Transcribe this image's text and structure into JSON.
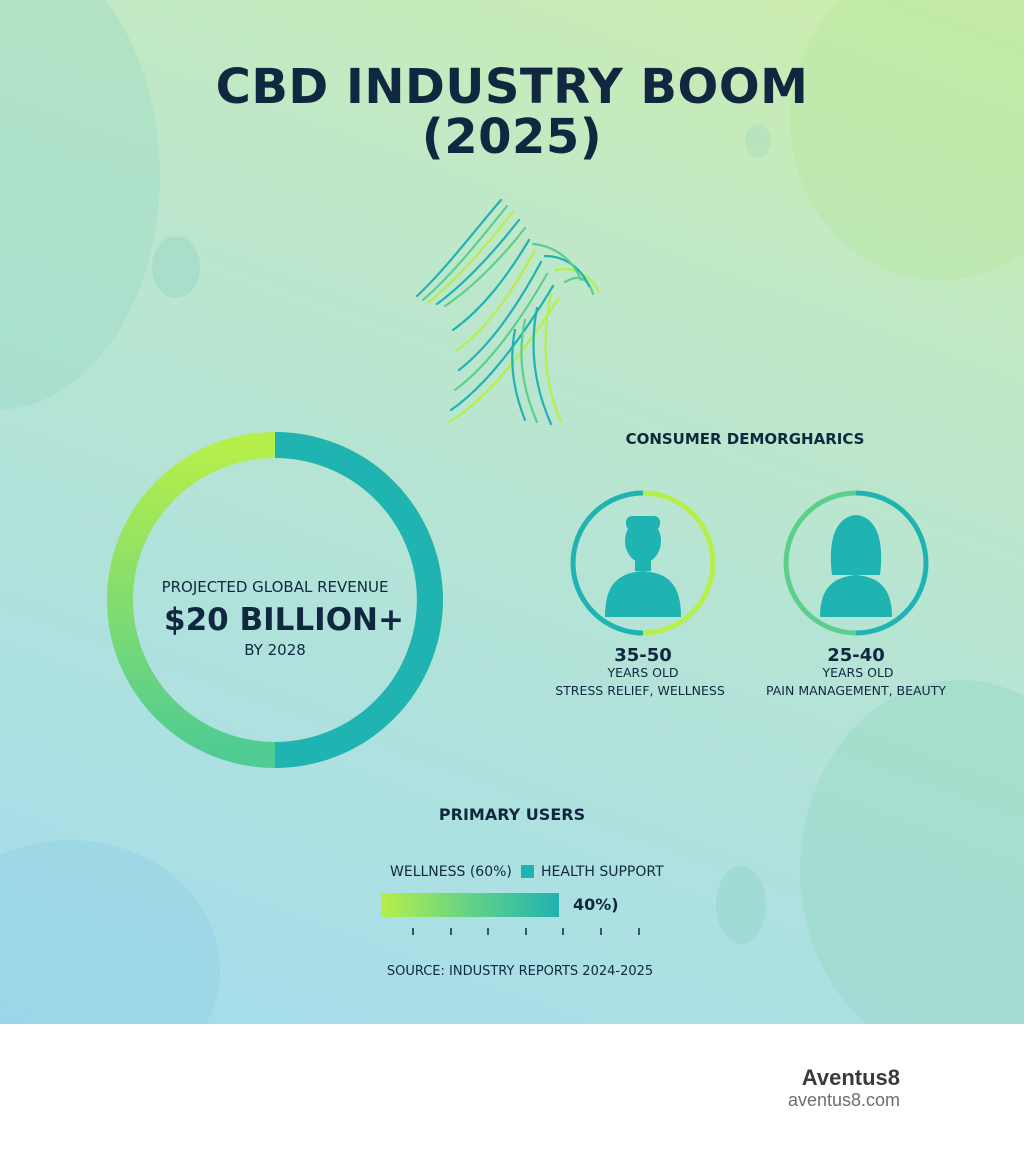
{
  "title_line1": "CBD INDUSTRY BOOM",
  "title_line2": "(2025)",
  "revenue": {
    "label": "PROJECTED GLOBAL REVENUE",
    "value": "$20 BILLION+",
    "subtitle": "BY 2028"
  },
  "demographics": {
    "title": "CONSUMER DEMORGHARICS",
    "personas": [
      {
        "icon": "male-person-icon",
        "age": "35-50",
        "unit": "YEARS OLD",
        "interest": "STRESS RELIEF, WELLNESS"
      },
      {
        "icon": "female-person-icon",
        "age": "25-40",
        "unit": "YEARS OLD",
        "interest": "PAIN MANAGEMENT, BEAUTY"
      }
    ]
  },
  "primary_users": {
    "title": "PRIMARY USERS",
    "legend_wellness": "WELLNESS (60%)",
    "legend_health": "HEALTH SUPPORT",
    "bar_label": "40%)",
    "wellness_fraction": 0.6,
    "health_fraction": 0.4
  },
  "source": "SOURCE: INDUSTRY REPORTS 2024-2025",
  "brand": {
    "name": "Aventus8",
    "url": "aventus8.com"
  },
  "colors": {
    "teal": "#1fb3b2",
    "lime": "#b6ef4a",
    "green": "#5ccf8c",
    "navy": "#10283f"
  },
  "icons": [
    "growth-arrow-icon",
    "male-person-icon",
    "female-person-icon"
  ]
}
